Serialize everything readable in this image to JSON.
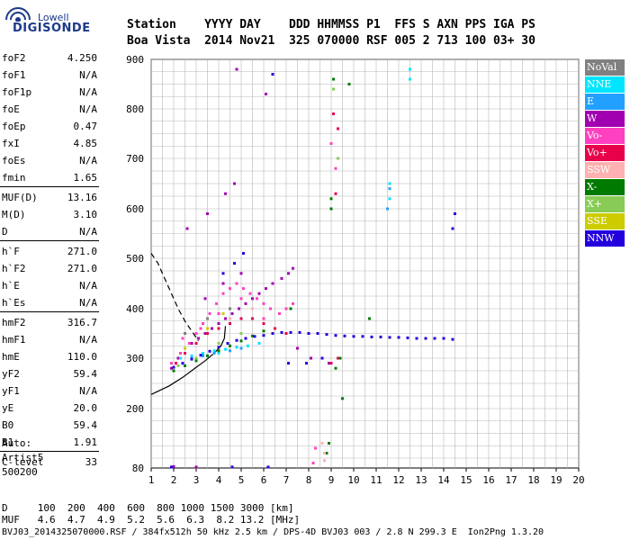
{
  "logo": {
    "top": "Lowell",
    "main": "DIGISONDE"
  },
  "header": {
    "line1": "Station    YYYY DAY    DDD HHMMSS P1  FFS S AXN PPS IGA PS",
    "line2": "Boa Vista  2014 Nov21  325 070000 RSF 005 2 713 100 03+ 30"
  },
  "params": [
    {
      "name": "foF2",
      "value": "4.250"
    },
    {
      "name": "foF1",
      "value": "N/A"
    },
    {
      "name": "foF1p",
      "value": "N/A"
    },
    {
      "name": "foE",
      "value": "N/A"
    },
    {
      "name": "foEp",
      "value": "0.47"
    },
    {
      "name": "fxI",
      "value": "4.85"
    },
    {
      "name": "foEs",
      "value": "N/A"
    },
    {
      "name": "fmin",
      "value": "1.65"
    },
    {
      "name": "MUF(D)",
      "value": "13.16"
    },
    {
      "name": "M(D)",
      "value": "3.10"
    },
    {
      "name": "D",
      "value": "N/A"
    },
    {
      "name": "h`F",
      "value": "271.0"
    },
    {
      "name": "h`F2",
      "value": "271.0"
    },
    {
      "name": "h`E",
      "value": "N/A"
    },
    {
      "name": "h`Es",
      "value": "N/A"
    },
    {
      "name": "hmF2",
      "value": "316.7"
    },
    {
      "name": "hmF1",
      "value": "N/A"
    },
    {
      "name": "hmE",
      "value": "110.0"
    },
    {
      "name": "yF2",
      "value": "59.4"
    },
    {
      "name": "yF1",
      "value": "N/A"
    },
    {
      "name": "yE",
      "value": "20.0"
    },
    {
      "name": "B0",
      "value": "59.4"
    },
    {
      "name": "B1",
      "value": "1.91"
    },
    {
      "name": "C-level",
      "value": "33"
    }
  ],
  "auto": {
    "line1": "Auto:",
    "line2": "Artist5",
    "line3": "500200"
  },
  "legend": [
    {
      "label": "NoVal",
      "color": "#808080"
    },
    {
      "label": "NNE",
      "color": "#00e5ff"
    },
    {
      "label": "E",
      "color": "#22a0ff"
    },
    {
      "label": "W",
      "color": "#a000b0"
    },
    {
      "label": "Vo-",
      "color": "#ff40c0"
    },
    {
      "label": "Vo+",
      "color": "#e8004a"
    },
    {
      "label": "SSW",
      "color": "#ffb0b0"
    },
    {
      "label": "X-",
      "color": "#007a00"
    },
    {
      "label": "X+",
      "color": "#88cc55"
    },
    {
      "label": "SSE",
      "color": "#cccc00"
    },
    {
      "label": "NNW",
      "color": "#2200dd"
    }
  ],
  "bottom": {
    "d_line": "D     100  200  400  600  800 1000 1500 3000 [km]",
    "muf_line": "MUF   4.6  4.7  4.9  5.2  5.6  6.3  8.2 13.2 [MHz]",
    "file_line": "BVJ03_2014325070000.RSF / 384fx512h 50 kHz 2.5 km / DPS-4D BVJ03 003 / 2.8 N 299.3 E  Ion2Png 1.3.20"
  },
  "chart_data": {
    "type": "scatter",
    "x_ticks": [
      1,
      2,
      3,
      4,
      5,
      6,
      7,
      8,
      9,
      10,
      11,
      12,
      13,
      14,
      15,
      16,
      17,
      18,
      19,
      20
    ],
    "y_ticks": [
      80,
      200,
      300,
      400,
      500,
      600,
      700,
      800,
      900
    ],
    "xlim": [
      1,
      20
    ],
    "ylim_note": "virtual height axis, nonuniform tick spacing",
    "grid": true,
    "legend_position": "right",
    "series": [
      {
        "name": "W",
        "points": [
          [
            1.9,
            280
          ],
          [
            2.2,
            300
          ],
          [
            2.5,
            320
          ],
          [
            2.8,
            330
          ],
          [
            3.1,
            340
          ],
          [
            3.4,
            350
          ],
          [
            3.7,
            360
          ],
          [
            4.0,
            370
          ],
          [
            4.3,
            380
          ],
          [
            4.6,
            390
          ],
          [
            4.9,
            400
          ],
          [
            5.2,
            410
          ],
          [
            5.5,
            420
          ],
          [
            5.8,
            430
          ],
          [
            6.1,
            440
          ],
          [
            6.4,
            450
          ],
          [
            6.8,
            460
          ],
          [
            7.1,
            470
          ],
          [
            7.3,
            480
          ],
          [
            7.5,
            320
          ],
          [
            8.1,
            300
          ],
          [
            8.9,
            290
          ],
          [
            3.4,
            420
          ],
          [
            4.2,
            450
          ],
          [
            5.0,
            470
          ],
          [
            2.6,
            560
          ],
          [
            3.5,
            590
          ],
          [
            4.3,
            630
          ],
          [
            4.7,
            650
          ],
          [
            6.1,
            830
          ],
          [
            4.8,
            880
          ],
          [
            2.0,
            83
          ],
          [
            3.0,
            82
          ]
        ]
      },
      {
        "name": "Vo-",
        "points": [
          [
            1.9,
            290
          ],
          [
            2.3,
            310
          ],
          [
            2.7,
            330
          ],
          [
            3.0,
            350
          ],
          [
            3.3,
            370
          ],
          [
            3.6,
            390
          ],
          [
            3.9,
            410
          ],
          [
            4.2,
            430
          ],
          [
            4.5,
            440
          ],
          [
            4.8,
            450
          ],
          [
            5.1,
            440
          ],
          [
            5.4,
            430
          ],
          [
            5.7,
            420
          ],
          [
            6.0,
            410
          ],
          [
            6.3,
            400
          ],
          [
            6.7,
            390
          ],
          [
            7.0,
            400
          ],
          [
            7.3,
            410
          ],
          [
            2.4,
            340
          ],
          [
            3.2,
            360
          ],
          [
            4.0,
            390
          ],
          [
            5.0,
            420
          ],
          [
            6.0,
            380
          ],
          [
            9.0,
            730
          ],
          [
            9.2,
            680
          ],
          [
            8.2,
            90
          ],
          [
            8.3,
            120
          ]
        ]
      },
      {
        "name": "Vo+",
        "points": [
          [
            2.1,
            290
          ],
          [
            2.5,
            310
          ],
          [
            3.0,
            330
          ],
          [
            3.5,
            350
          ],
          [
            4.0,
            360
          ],
          [
            4.5,
            370
          ],
          [
            5.0,
            380
          ],
          [
            5.5,
            380
          ],
          [
            6.0,
            370
          ],
          [
            6.5,
            360
          ],
          [
            7.0,
            350
          ],
          [
            9.1,
            790
          ],
          [
            9.3,
            760
          ],
          [
            9.2,
            630
          ],
          [
            9.0,
            290
          ],
          [
            9.3,
            300
          ]
        ]
      },
      {
        "name": "NNE",
        "points": [
          [
            2.3,
            300
          ],
          [
            2.8,
            305
          ],
          [
            3.3,
            310
          ],
          [
            3.8,
            315
          ],
          [
            4.3,
            318
          ],
          [
            4.8,
            322
          ],
          [
            5.3,
            325
          ],
          [
            5.8,
            330
          ],
          [
            11.6,
            650
          ],
          [
            11.6,
            620
          ],
          [
            12.5,
            880
          ],
          [
            12.5,
            860
          ],
          [
            3.0,
            300
          ],
          [
            4.0,
            310
          ]
        ]
      },
      {
        "name": "E",
        "points": [
          [
            2.8,
            300
          ],
          [
            3.3,
            305
          ],
          [
            3.8,
            310
          ],
          [
            4.5,
            315
          ],
          [
            5.0,
            320
          ],
          [
            11.5,
            600
          ],
          [
            11.6,
            640
          ]
        ]
      },
      {
        "name": "X-",
        "points": [
          [
            2.0,
            275
          ],
          [
            2.5,
            285
          ],
          [
            3.0,
            295
          ],
          [
            3.5,
            305
          ],
          [
            4.0,
            315
          ],
          [
            4.5,
            325
          ],
          [
            5.0,
            335
          ],
          [
            5.5,
            345
          ],
          [
            6.0,
            355
          ],
          [
            7.2,
            400
          ],
          [
            9.0,
            600
          ],
          [
            9.0,
            620
          ],
          [
            9.1,
            860
          ],
          [
            9.8,
            850
          ],
          [
            10.7,
            380
          ],
          [
            9.2,
            280
          ],
          [
            9.4,
            300
          ],
          [
            8.8,
            110
          ],
          [
            8.9,
            130
          ],
          [
            9.5,
            220
          ]
        ]
      },
      {
        "name": "X+",
        "points": [
          [
            2.2,
            285
          ],
          [
            3.0,
            300
          ],
          [
            4.0,
            330
          ],
          [
            5.0,
            350
          ],
          [
            9.1,
            840
          ],
          [
            9.3,
            700
          ]
        ]
      },
      {
        "name": "SSW",
        "points": [
          [
            3.5,
            360
          ],
          [
            4.5,
            380
          ],
          [
            5.5,
            400
          ],
          [
            8.7,
            95
          ],
          [
            8.7,
            110
          ],
          [
            8.6,
            130
          ]
        ]
      },
      {
        "name": "SSE",
        "points": [
          [
            2.5,
            320
          ],
          [
            3.5,
            360
          ],
          [
            4.2,
            390
          ]
        ]
      },
      {
        "name": "NoVal",
        "points": [
          [
            2.5,
            350
          ],
          [
            3.5,
            380
          ],
          [
            4.5,
            400
          ]
        ]
      },
      {
        "name": "NNW",
        "points": [
          [
            2.0,
            282
          ],
          [
            2.4,
            290
          ],
          [
            2.8,
            298
          ],
          [
            3.2,
            306
          ],
          [
            3.6,
            314
          ],
          [
            4.0,
            322
          ],
          [
            4.4,
            330
          ],
          [
            4.8,
            336
          ],
          [
            5.2,
            340
          ],
          [
            5.6,
            344
          ],
          [
            6.0,
            346
          ],
          [
            6.4,
            350
          ],
          [
            6.8,
            352
          ],
          [
            7.2,
            352
          ],
          [
            7.6,
            352
          ],
          [
            8.0,
            350
          ],
          [
            8.4,
            350
          ],
          [
            8.8,
            348
          ],
          [
            9.2,
            346
          ],
          [
            9.6,
            345
          ],
          [
            10.0,
            344
          ],
          [
            10.4,
            344
          ],
          [
            10.8,
            343
          ],
          [
            11.2,
            343
          ],
          [
            11.6,
            342
          ],
          [
            12.0,
            342
          ],
          [
            12.4,
            341
          ],
          [
            12.8,
            340
          ],
          [
            13.2,
            340
          ],
          [
            13.6,
            340
          ],
          [
            14.0,
            340
          ],
          [
            14.4,
            338
          ],
          [
            14.5,
            590
          ],
          [
            14.4,
            560
          ],
          [
            4.2,
            470
          ],
          [
            4.7,
            490
          ],
          [
            5.1,
            510
          ],
          [
            1.9,
            82
          ],
          [
            4.6,
            82
          ],
          [
            6.2,
            82
          ],
          [
            7.1,
            290
          ],
          [
            7.9,
            290
          ],
          [
            8.6,
            300
          ],
          [
            6.4,
            870
          ]
        ]
      }
    ],
    "trace_solid": [
      [
        1.0,
        228
      ],
      [
        1.8,
        245
      ],
      [
        2.4,
        262
      ],
      [
        3.0,
        282
      ],
      [
        3.4,
        295
      ],
      [
        3.8,
        310
      ],
      [
        4.1,
        325
      ],
      [
        4.25,
        340
      ],
      [
        4.3,
        365
      ]
    ],
    "trace_dashed": [
      [
        1.0,
        510
      ],
      [
        1.3,
        490
      ],
      [
        1.6,
        460
      ],
      [
        1.9,
        430
      ],
      [
        2.2,
        400
      ],
      [
        2.5,
        375
      ],
      [
        2.8,
        355
      ],
      [
        3.1,
        335
      ]
    ]
  }
}
